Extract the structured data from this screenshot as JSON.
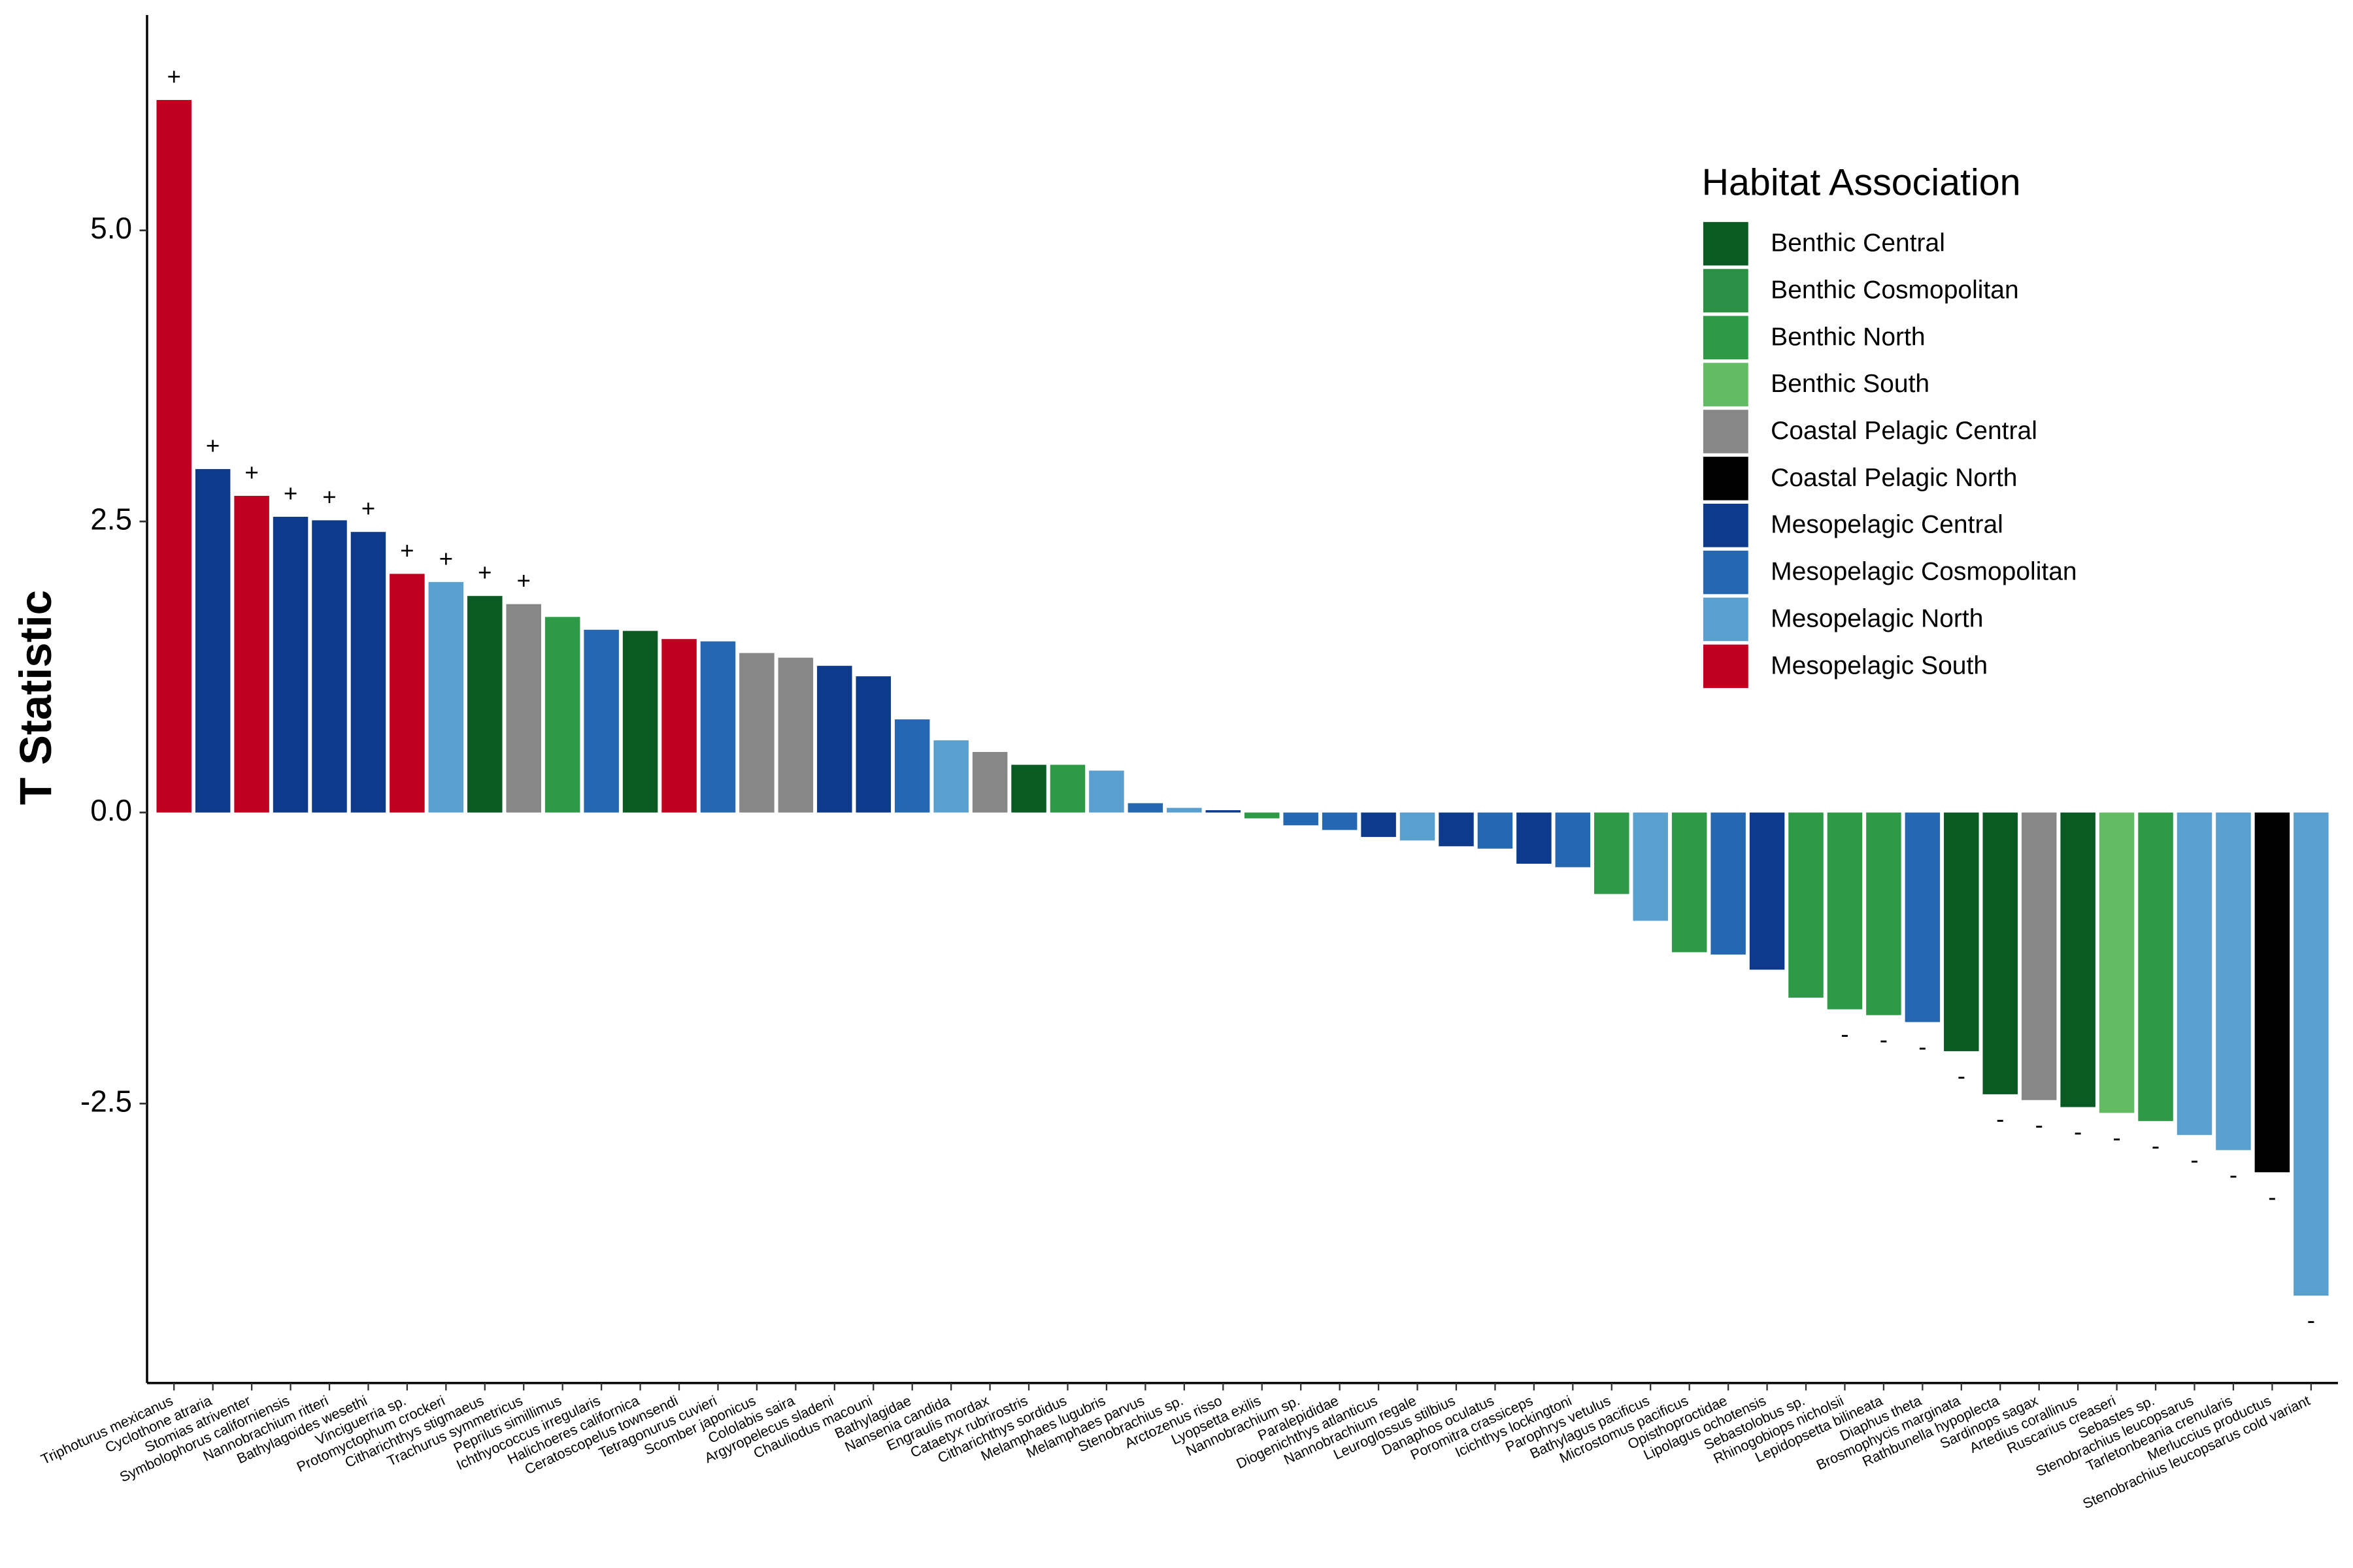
{
  "chart_data": {
    "type": "bar",
    "y_label": "T Statistic",
    "legend_title": "Habitat Association",
    "legend": [
      {
        "name": "Benthic Central",
        "color": "#0b5a24"
      },
      {
        "name": "Benthic Cosmopolitan",
        "color": "#2b8f45"
      },
      {
        "name": "Benthic North",
        "color": "#2e9a48"
      },
      {
        "name": "Benthic South",
        "color": "#63bb63"
      },
      {
        "name": "Coastal Pelagic Central",
        "color": "#878787"
      },
      {
        "name": "Coastal Pelagic North",
        "color": "#000000"
      },
      {
        "name": "Mesopelagic Central",
        "color": "#0d3a8a"
      },
      {
        "name": "Mesopelagic Cosmopolitan",
        "color": "#2568b1"
      },
      {
        "name": "Mesopelagic North",
        "color": "#5aa0cf"
      },
      {
        "name": "Mesopelagic South",
        "color": "#c0001f"
      }
    ],
    "categories": [
      "Triphoturus mexicanus",
      "Cyclothone atraria",
      "Stomias atriventer",
      "Symbolophorus californiensis",
      "Nannobrachium ritteri",
      "Bathylagoides wesethi",
      "Vinciguerria sp.",
      "Protomyctophum crockeri",
      "Citharichthys stigmaeus",
      "Trachurus symmetricus",
      "Peprilus simillimus",
      "Ichthyococcus irregularis",
      "Halichoeres californica",
      "Ceratoscopelus townsendi",
      "Tetragonurus cuvieri",
      "Scomber japonicus",
      "Cololabis saira",
      "Argyropelecus sladeni",
      "Chauliodus macouni",
      "Bathylagidae",
      "Nansenia candida",
      "Engraulis mordax",
      "Cataetyx rubrirostris",
      "Citharichthys sordidus",
      "Melamphaes lugubris",
      "Melamphaes parvus",
      "Stenobrachius sp.",
      "Arctozenus risso",
      "Lyopsetta exilis",
      "Nannobrachium sp.",
      "Paralepididae",
      "Diogenichthys atlanticus",
      "Nannobrachium regale",
      "Leuroglossus stilbius",
      "Danaphos oculatus",
      "Poromitra crassiceps",
      "Icichthys lockingtoni",
      "Parophrys vetulus",
      "Bathylagus pacificus",
      "Microstomus pacificus",
      "Opisthoproctidae",
      "Lipolagus ochotensis",
      "Sebastolobus sp.",
      "Rhinogobiops nicholsii",
      "Lepidopsetta bilineata",
      "Diaphus theta",
      "Brosmophycis marginata",
      "Rathbunella hypoplecta",
      "Sardinops sagax",
      "Artedius corallinus",
      "Ruscarius creaseri",
      "Sebastes sp.",
      "Stenobrachius leucopsarus",
      "Tarletonbeania crenularis",
      "Merluccius productus",
      "Stenobrachius leucopsarus cold variant"
    ],
    "values": [
      6.12,
      2.95,
      2.72,
      2.54,
      2.51,
      2.41,
      2.05,
      1.98,
      1.86,
      1.79,
      1.68,
      1.57,
      1.56,
      1.49,
      1.47,
      1.37,
      1.33,
      1.26,
      1.17,
      0.8,
      0.62,
      0.52,
      0.41,
      0.41,
      0.36,
      0.08,
      0.04,
      0.02,
      -0.05,
      -0.11,
      -0.15,
      -0.21,
      -0.24,
      -0.29,
      -0.31,
      -0.44,
      -0.47,
      -0.7,
      -0.93,
      -1.2,
      -1.22,
      -1.35,
      -1.59,
      -1.69,
      -1.74,
      -1.8,
      -2.05,
      -2.42,
      -2.47,
      -2.53,
      -2.58,
      -2.65,
      -2.77,
      -2.9,
      -3.09,
      -4.15
    ],
    "habitat": [
      "Mesopelagic South",
      "Mesopelagic Central",
      "Mesopelagic South",
      "Mesopelagic Central",
      "Mesopelagic Central",
      "Mesopelagic Central",
      "Mesopelagic South",
      "Mesopelagic North",
      "Benthic Central",
      "Coastal Pelagic Central",
      "Benthic North",
      "Mesopelagic Cosmopolitan",
      "Benthic Central",
      "Mesopelagic South",
      "Mesopelagic Cosmopolitan",
      "Coastal Pelagic Central",
      "Coastal Pelagic Central",
      "Mesopelagic Central",
      "Mesopelagic Central",
      "Mesopelagic Cosmopolitan",
      "Mesopelagic North",
      "Coastal Pelagic Central",
      "Benthic Central",
      "Benthic North",
      "Mesopelagic North",
      "Mesopelagic Cosmopolitan",
      "Mesopelagic North",
      "Mesopelagic Central",
      "Benthic North",
      "Mesopelagic Cosmopolitan",
      "Mesopelagic Cosmopolitan",
      "Mesopelagic Central",
      "Mesopelagic North",
      "Mesopelagic Central",
      "Mesopelagic Cosmopolitan",
      "Mesopelagic Central",
      "Mesopelagic Cosmopolitan",
      "Benthic North",
      "Mesopelagic North",
      "Benthic North",
      "Mesopelagic Cosmopolitan",
      "Mesopelagic Central",
      "Benthic North",
      "Benthic North",
      "Benthic North",
      "Mesopelagic Cosmopolitan",
      "Benthic Central",
      "Benthic Central",
      "Coastal Pelagic Central",
      "Benthic Central",
      "Benthic South",
      "Benthic North",
      "Mesopelagic North",
      "Mesopelagic North",
      "Coastal Pelagic North",
      "Mesopelagic North"
    ],
    "significance": [
      "+",
      "+",
      "+",
      "+",
      "+",
      "+",
      "+",
      "+",
      "+",
      "+",
      null,
      null,
      null,
      null,
      null,
      null,
      null,
      null,
      null,
      null,
      null,
      null,
      null,
      null,
      null,
      null,
      null,
      null,
      null,
      null,
      null,
      null,
      null,
      null,
      null,
      null,
      null,
      null,
      null,
      null,
      null,
      null,
      null,
      "-",
      "-",
      "-",
      "-",
      "-",
      "-",
      "-",
      "-",
      "-",
      "-",
      "-",
      "-",
      "-"
    ],
    "ylim": [
      -4.9,
      6.85
    ],
    "yticks": [
      -2.5,
      {
        "value": 0,
        "label": "0.0"
      },
      2.5,
      {
        "value": 5,
        "label": "5.0"
      }
    ]
  }
}
